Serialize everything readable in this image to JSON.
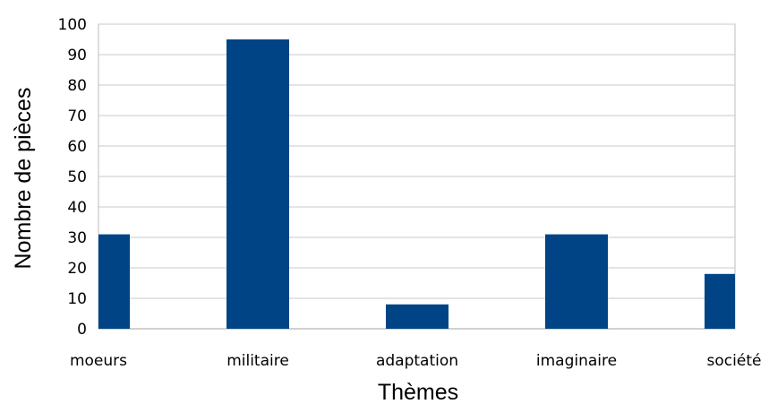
{
  "chart_data": {
    "type": "bar",
    "categories": [
      "moeurs",
      "militaire",
      "adaptation",
      "imaginaire",
      "société"
    ],
    "values": [
      31,
      95,
      8,
      31,
      18
    ],
    "title": "",
    "xlabel": "Thèmes",
    "ylabel": "Nombre de pièces",
    "ylim": [
      0,
      100
    ],
    "yticks": [
      0,
      10,
      20,
      30,
      40,
      50,
      60,
      70,
      80,
      90,
      100
    ],
    "grid": true,
    "legend": "none",
    "bar_color": "#004486"
  }
}
